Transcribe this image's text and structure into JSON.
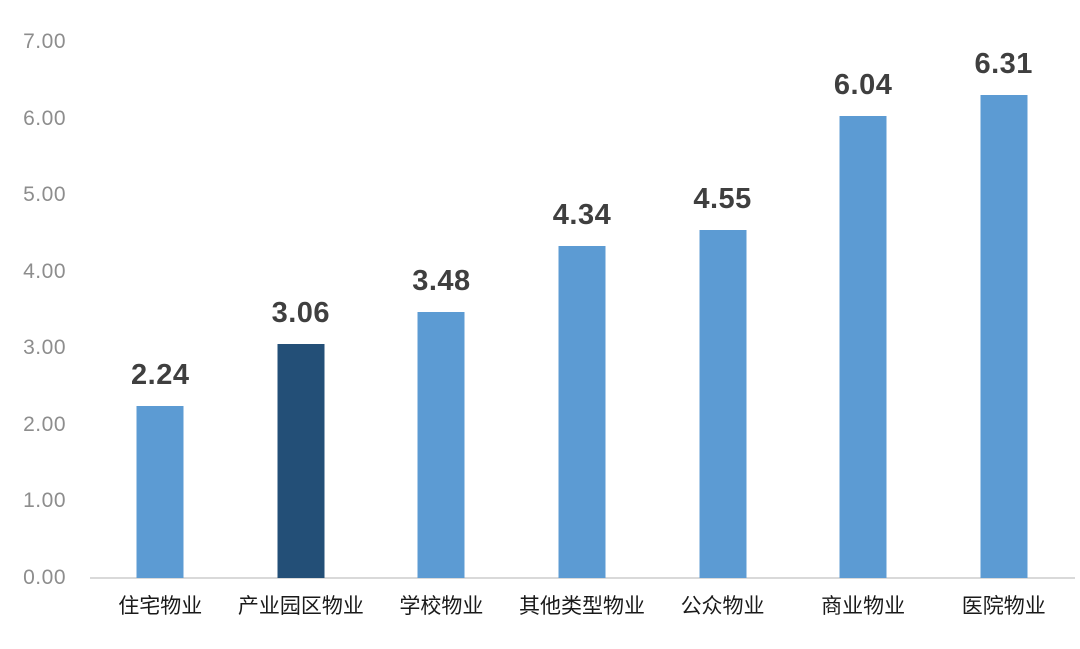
{
  "chart_data": {
    "type": "bar",
    "title": "",
    "categories": [
      "住宅物业",
      "产业园区物业",
      "学校物业",
      "其他类型物业",
      "公众物业",
      "商业物业",
      "医院物业"
    ],
    "values": [
      2.24,
      3.06,
      3.48,
      4.34,
      4.55,
      6.04,
      6.31
    ],
    "value_labels": [
      "2.24",
      "3.06",
      "3.48",
      "4.34",
      "4.55",
      "6.04",
      "6.31"
    ],
    "y_tick_labels": [
      "0.00",
      "1.00",
      "2.00",
      "3.00",
      "4.00",
      "5.00",
      "6.00",
      "7.00"
    ],
    "ylim": [
      0,
      7
    ],
    "y_tick_step": 1,
    "grid": false,
    "legend_position": "none",
    "highlight_index": 1,
    "colors": {
      "bar": "#5C9BD3",
      "bar_highlight": "#234F77",
      "axis_line": "#D9D9D9",
      "y_tick_label": "#8D8D8D",
      "value_label": "#3F3F3F",
      "category_label": "#1A1A1A",
      "background": "#FFFFFF"
    }
  }
}
